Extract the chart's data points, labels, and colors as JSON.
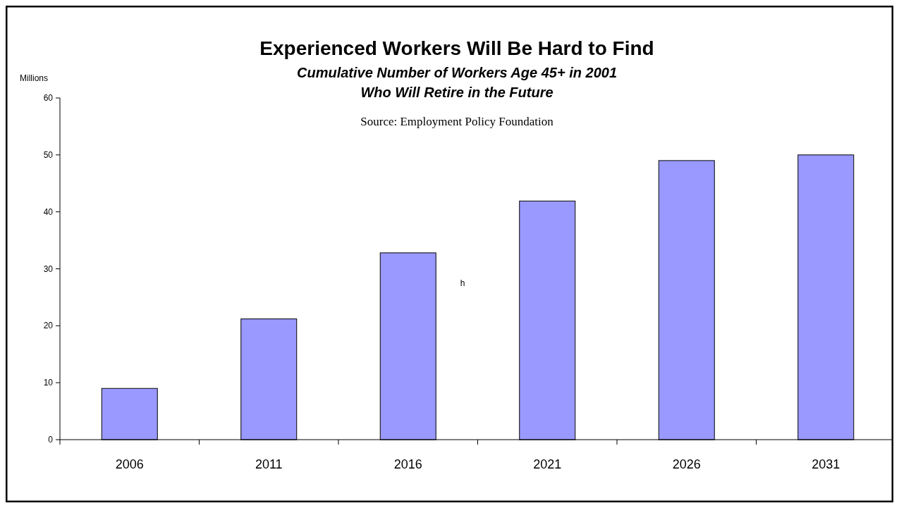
{
  "chart_data": {
    "type": "bar",
    "title": "Experienced Workers Will Be Hard to Find",
    "subtitle": "Cumulative Number of Workers Age 45+ in 2001\nWho Will Retire in the Future",
    "ylabel": "Millions",
    "annotations": [
      "Source: Employment Policy Foundation",
      "h"
    ],
    "categories": [
      "2006",
      "2011",
      "2016",
      "2021",
      "2026",
      "2031"
    ],
    "values": [
      9,
      21.2,
      32.8,
      41.9,
      49,
      50
    ],
    "color": "#9999ff",
    "ylim": [
      0,
      60
    ],
    "yticks": [
      0,
      10,
      20,
      30,
      40,
      50,
      60
    ],
    "grid": false
  }
}
